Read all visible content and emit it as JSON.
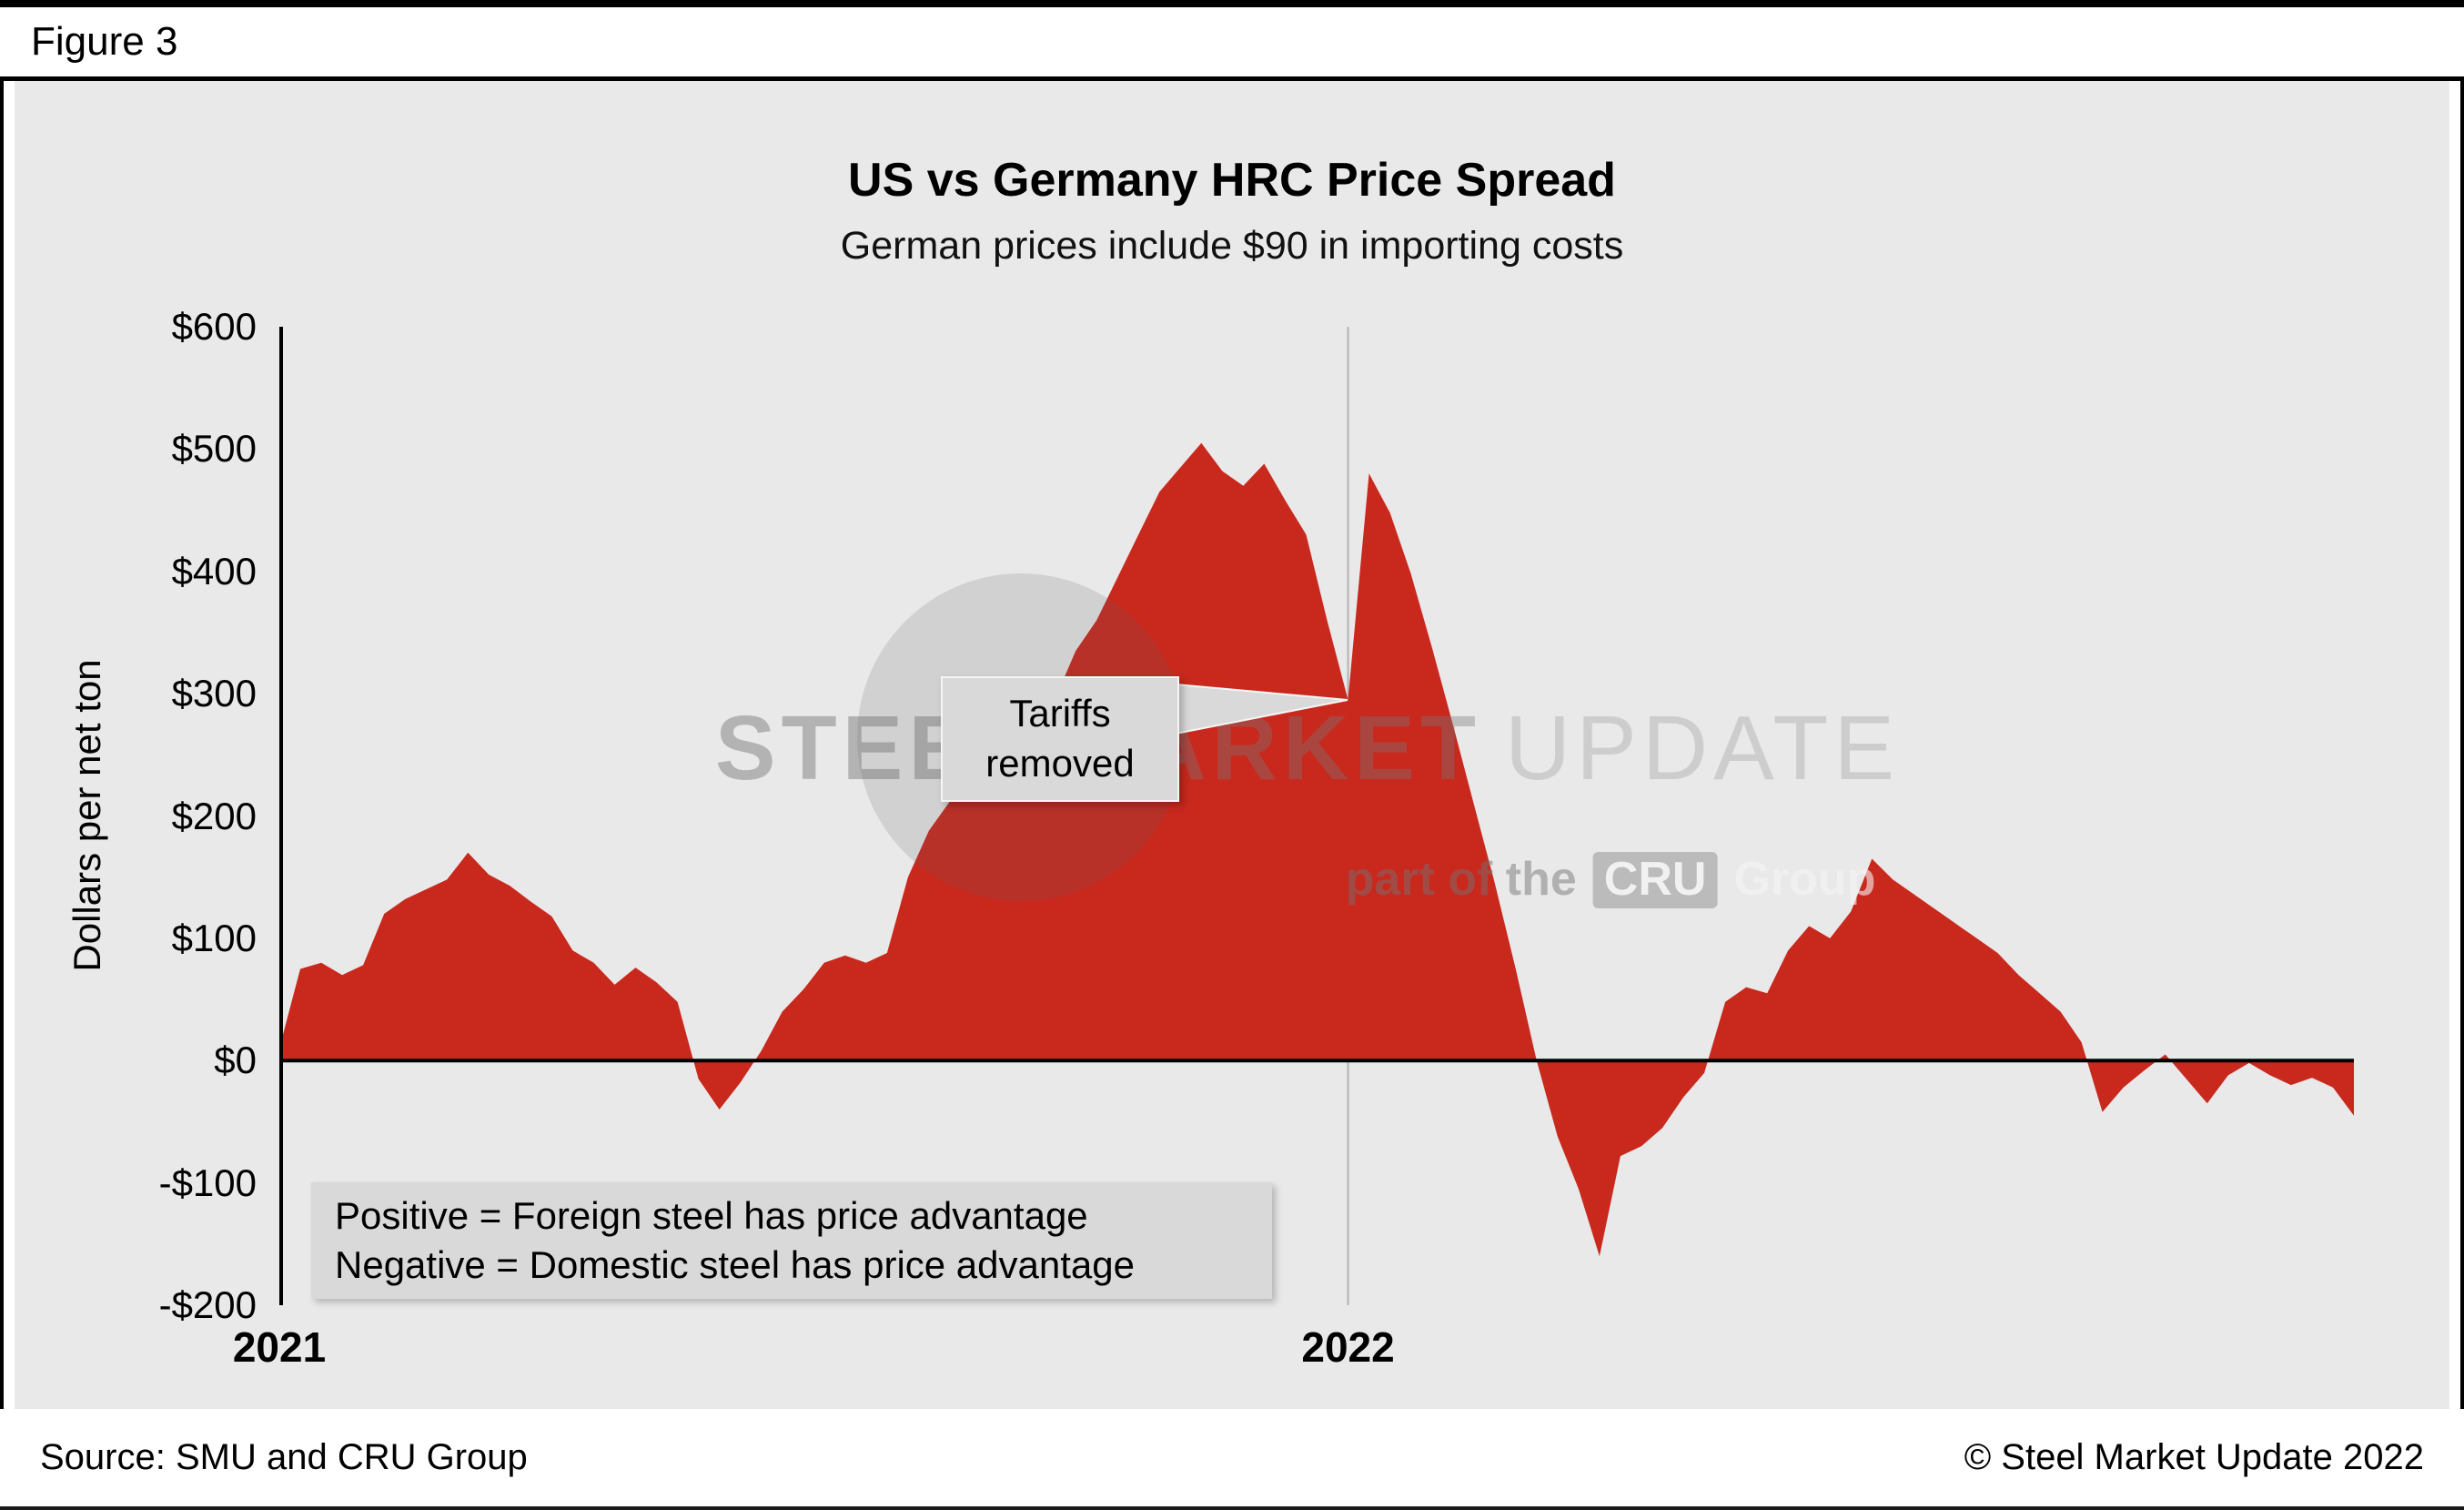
{
  "figure": {
    "label": "Figure 3"
  },
  "chart": {
    "title": "US vs Germany HRC Price Spread",
    "subtitle": "German prices include $90 in importing costs",
    "y_axis_label": "Dollars per net ton",
    "note_line1": "Positive = Foreign steel has price advantage",
    "note_line2": "Negative = Domestic steel has price advantage",
    "annotation": {
      "line1": "Tariffs",
      "line2": "removed"
    }
  },
  "watermark": {
    "word1": "STEEL",
    "word2": "MARKET",
    "word3": "UPDATE",
    "tagline_pre": "part of the",
    "tagline_box": "CRU",
    "tagline_post": "Group"
  },
  "footer": {
    "source": "Source: SMU and CRU Group",
    "copyright": "© Steel Market Update 2022"
  },
  "chart_data": {
    "type": "area",
    "title": "US vs Germany HRC Price Spread",
    "subtitle": "German prices include $90 in importing costs",
    "ylabel": "Dollars per net ton",
    "ylim": [
      -200,
      600
    ],
    "y_ticks": [
      "$600",
      "$500",
      "$400",
      "$300",
      "$200",
      "$100",
      "$0",
      "-$100",
      "-$200"
    ],
    "y_tick_values": [
      600,
      500,
      400,
      300,
      200,
      100,
      0,
      -100,
      -200
    ],
    "x_ticks": [
      {
        "label": "2021",
        "index": 0
      },
      {
        "label": "2022",
        "index": 51
      }
    ],
    "frequency": "weekly",
    "series_name": "US minus Germany HRC price spread ($/net ton)",
    "series_color": "#c9281d",
    "grid": "vertical line at year boundary, bold horizontal line at $0",
    "annotation_point": {
      "index": 51,
      "value": 295,
      "label": "Tariffs removed"
    },
    "values": [
      10,
      75,
      80,
      70,
      78,
      120,
      132,
      140,
      148,
      170,
      152,
      143,
      130,
      118,
      90,
      80,
      62,
      76,
      64,
      48,
      -15,
      -40,
      -18,
      8,
      40,
      58,
      80,
      86,
      80,
      88,
      150,
      188,
      212,
      224,
      234,
      245,
      265,
      295,
      335,
      360,
      395,
      430,
      465,
      485,
      505,
      482,
      470,
      488,
      458,
      430,
      360,
      295,
      480,
      448,
      398,
      338,
      275,
      210,
      145,
      75,
      0,
      -62,
      -105,
      -160,
      -78,
      -70,
      -55,
      -30,
      -10,
      48,
      60,
      55,
      90,
      110,
      100,
      122,
      165,
      148,
      136,
      124,
      112,
      100,
      88,
      70,
      55,
      40,
      15,
      -42,
      -22,
      -8,
      5,
      -15,
      -35,
      -12,
      -2,
      -12,
      -20,
      -14,
      -22,
      -45
    ]
  }
}
